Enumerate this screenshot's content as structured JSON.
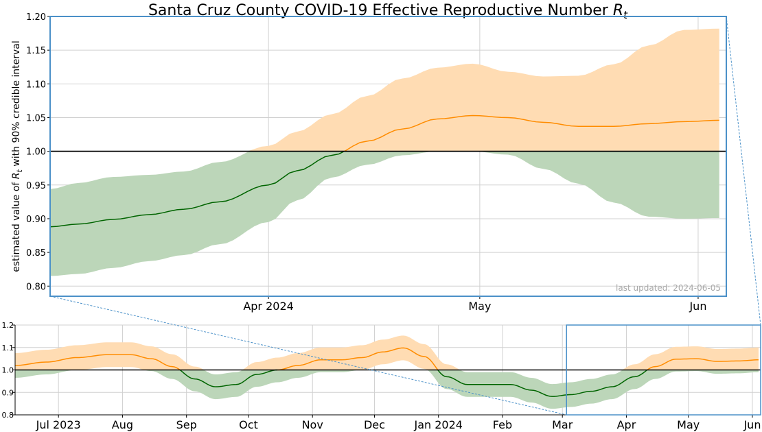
{
  "title_text": "Santa Cruz County COVID-19 Effective Reproductive Number ",
  "title_symbol": "R",
  "title_sub": "t",
  "ylabel_pre": "estimated value of ",
  "ylabel_symbol": "R",
  "ylabel_sub": "t",
  "ylabel_post": " with 90% credible interval",
  "last_updated": "last updated: 2024-06-05",
  "colors": {
    "above_line": "#ff8c00",
    "above_band": "#ffdcb3",
    "below_line": "#006400",
    "below_band": "#bcd6b9",
    "zoom_box": "#4a90c8",
    "grid": "#d0d0d0",
    "threshold": "#000000"
  },
  "chart_data": [
    {
      "name": "zoomed",
      "type": "area",
      "x_range": [
        "2024-03-01",
        "2024-06-05"
      ],
      "ylim": [
        0.785,
        1.2
      ],
      "yticks": [
        0.8,
        0.85,
        0.9,
        0.95,
        1.0,
        1.05,
        1.1,
        1.15,
        1.2
      ],
      "xticks": [
        {
          "date": "2024-04-01",
          "label": "Apr 2024"
        },
        {
          "date": "2024-05-01",
          "label": "May"
        },
        {
          "date": "2024-06-01",
          "label": "Jun"
        }
      ],
      "threshold": 1.0,
      "grid": true,
      "x": [
        "2024-03-01",
        "2024-03-05",
        "2024-03-10",
        "2024-03-15",
        "2024-03-20",
        "2024-03-25",
        "2024-04-01",
        "2024-04-05",
        "2024-04-10",
        "2024-04-15",
        "2024-04-20",
        "2024-04-25",
        "2024-04-30",
        "2024-05-05",
        "2024-05-10",
        "2024-05-15",
        "2024-05-20",
        "2024-05-25",
        "2024-05-30",
        "2024-06-04"
      ],
      "mean": [
        0.888,
        0.892,
        0.899,
        0.906,
        0.914,
        0.925,
        0.95,
        0.971,
        0.994,
        1.015,
        1.033,
        1.048,
        1.053,
        1.05,
        1.043,
        1.037,
        1.037,
        1.041,
        1.044,
        1.046
      ],
      "lower": [
        0.815,
        0.818,
        0.827,
        0.837,
        0.846,
        0.862,
        0.895,
        0.927,
        0.961,
        0.98,
        0.994,
        1.0,
        1.0,
        0.995,
        0.974,
        0.952,
        0.924,
        0.903,
        0.9,
        0.901
      ],
      "upper": [
        0.944,
        0.953,
        0.962,
        0.965,
        0.97,
        0.984,
        1.008,
        1.029,
        1.055,
        1.082,
        1.108,
        1.124,
        1.13,
        1.118,
        1.111,
        1.112,
        1.129,
        1.157,
        1.18,
        1.182
      ]
    },
    {
      "name": "overview",
      "type": "area",
      "x_range": [
        "2023-06-10",
        "2024-06-05"
      ],
      "ylim": [
        0.8,
        1.2
      ],
      "yticks": [
        0.8,
        0.9,
        1.0,
        1.1,
        1.2
      ],
      "xticks": [
        {
          "date": "2023-07-01",
          "label": "Jul 2023"
        },
        {
          "date": "2023-08-01",
          "label": "Aug"
        },
        {
          "date": "2023-09-01",
          "label": "Sep"
        },
        {
          "date": "2023-10-01",
          "label": "Oct"
        },
        {
          "date": "2023-11-01",
          "label": "Nov"
        },
        {
          "date": "2023-12-01",
          "label": "Dec"
        },
        {
          "date": "2024-01-01",
          "label": "Jan 2024"
        },
        {
          "date": "2024-02-01",
          "label": "Feb"
        },
        {
          "date": "2024-03-01",
          "label": "Mar"
        },
        {
          "date": "2024-04-01",
          "label": "Apr"
        },
        {
          "date": "2024-05-01",
          "label": "May"
        },
        {
          "date": "2024-06-01",
          "label": "Jun"
        }
      ],
      "threshold": 1.0,
      "grid": true,
      "zoom_range": [
        "2024-03-03",
        "2024-06-05"
      ],
      "x": [
        "2023-06-10",
        "2023-06-25",
        "2023-07-10",
        "2023-07-25",
        "2023-08-05",
        "2023-08-15",
        "2023-08-25",
        "2023-09-05",
        "2023-09-15",
        "2023-09-25",
        "2023-10-05",
        "2023-10-15",
        "2023-10-25",
        "2023-11-05",
        "2023-11-15",
        "2023-11-25",
        "2023-12-05",
        "2023-12-15",
        "2023-12-25",
        "2024-01-05",
        "2024-01-15",
        "2024-01-25",
        "2024-02-05",
        "2024-02-15",
        "2024-02-25",
        "2024-03-05",
        "2024-03-15",
        "2024-03-25",
        "2024-04-05",
        "2024-04-15",
        "2024-04-25",
        "2024-05-05",
        "2024-05-15",
        "2024-05-25",
        "2024-06-04"
      ],
      "mean": [
        1.02,
        1.035,
        1.055,
        1.068,
        1.068,
        1.05,
        1.015,
        0.96,
        0.925,
        0.935,
        0.98,
        1.0,
        1.02,
        1.045,
        1.045,
        1.055,
        1.08,
        1.098,
        1.06,
        0.97,
        0.935,
        0.935,
        0.935,
        0.91,
        0.882,
        0.89,
        0.905,
        0.925,
        0.97,
        1.015,
        1.048,
        1.05,
        1.038,
        1.04,
        1.045
      ]
    }
  ]
}
